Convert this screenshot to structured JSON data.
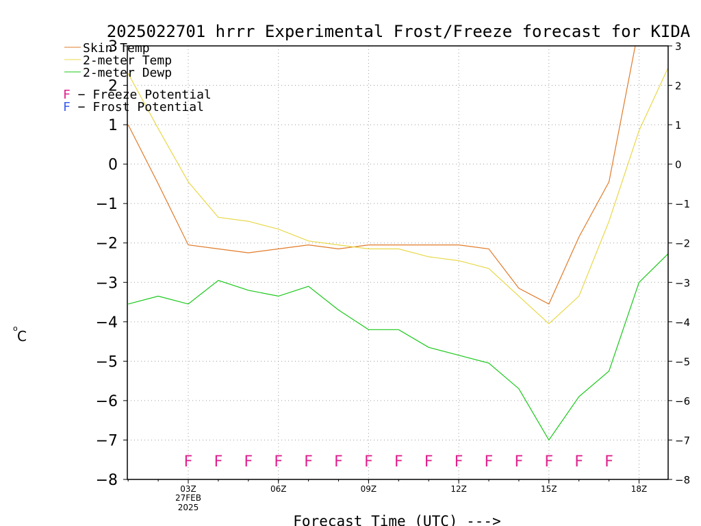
{
  "chart_data": {
    "type": "line",
    "title": "2025022701 hrrr Experimental Frost/Freeze forecast for KIDA",
    "xlabel": "Forecast Time (UTC) --->",
    "ylabel": "°C",
    "ylabel_degree": "o",
    "ylabel_unit": "C",
    "ylim": [
      -8,
      3
    ],
    "y_ticks": [
      -8,
      -7,
      -6,
      -5,
      -4,
      -3,
      -2,
      -1,
      0,
      1,
      2,
      3
    ],
    "y_tick_labels": [
      "−8",
      "−7",
      "−6",
      "−5",
      "−4",
      "−3",
      "−2",
      "−1",
      "0",
      "1",
      "2",
      "3"
    ],
    "x_hours": [
      1,
      2,
      3,
      4,
      5,
      6,
      7,
      8,
      9,
      10,
      11,
      12,
      13,
      14,
      15,
      16,
      17,
      18,
      19
    ],
    "x_ticks": [
      {
        "hour": 3,
        "label": "03Z",
        "date_line1": "27FEB",
        "date_line2": "2025"
      },
      {
        "hour": 6,
        "label": "06Z"
      },
      {
        "hour": 9,
        "label": "09Z"
      },
      {
        "hour": 12,
        "label": "12Z"
      },
      {
        "hour": 15,
        "label": "15Z"
      },
      {
        "hour": 18,
        "label": "18Z"
      }
    ],
    "grid": true,
    "legend_placement": "top-left",
    "series": [
      {
        "name": "Skin Temp",
        "color": "#e07a28",
        "values": [
          1.0,
          -0.5,
          -2.05,
          -2.15,
          -2.25,
          -2.15,
          -2.05,
          -2.15,
          -2.05,
          -2.05,
          -2.05,
          -2.05,
          -2.15,
          -3.15,
          -3.55,
          -1.85,
          -0.45,
          3.5,
          null
        ]
      },
      {
        "name": "2-meter Temp",
        "color": "#e8d848",
        "values": [
          2.3,
          0.9,
          -0.45,
          -1.35,
          -1.45,
          -1.65,
          -1.95,
          -2.05,
          -2.15,
          -2.15,
          -2.35,
          -2.45,
          -2.65,
          -3.35,
          -4.05,
          -3.35,
          -1.45,
          0.85,
          2.5
        ]
      },
      {
        "name": "2-meter Dewp",
        "color": "#18c818",
        "values": [
          -3.55,
          -3.35,
          -3.55,
          -2.95,
          -3.2,
          -3.35,
          -3.1,
          -3.7,
          -4.2,
          -4.2,
          -4.65,
          -4.85,
          -5.05,
          -5.7,
          -7.0,
          -5.9,
          -5.25,
          -3.0,
          -2.25
        ]
      }
    ],
    "annotations": {
      "freeze_legend": {
        "symbol": "F",
        "text": " − Freeze Potential",
        "color": "#e0208c"
      },
      "frost_legend": {
        "symbol": "F",
        "text": " − Frost Potential",
        "color": "#3a5cf0"
      },
      "potential_markers": {
        "symbol": "F",
        "color": "#e0208c",
        "y": -7.5,
        "hours": [
          3,
          4,
          5,
          6,
          7,
          8,
          9,
          10,
          11,
          12,
          13,
          14,
          15,
          16,
          17
        ]
      }
    }
  }
}
